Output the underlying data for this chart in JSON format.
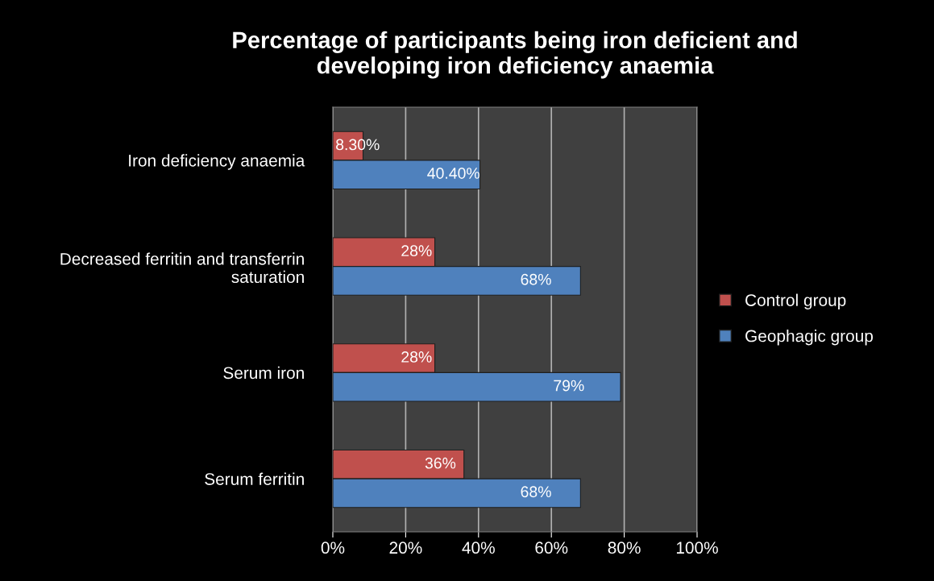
{
  "chart_data": {
    "type": "bar",
    "orientation": "horizontal",
    "title": "Percentage of participants being iron deficient and\ndeveloping iron deficiency anaemia",
    "categories": [
      "Iron deficiency anaemia",
      "Decreased ferritin and transferrin\nsaturation",
      "Serum iron",
      "Serum ferritin"
    ],
    "series": [
      {
        "name": "Control group",
        "color": "#c0504d",
        "values": [
          8.3,
          28,
          28,
          36
        ],
        "value_labels": [
          "8.30%",
          "28%",
          "28%",
          "36%"
        ]
      },
      {
        "name": "Geophagic group",
        "color": "#4f81bd",
        "values": [
          40.4,
          68,
          79,
          68
        ],
        "value_labels": [
          "40.40%",
          "68%",
          "79%",
          "68%"
        ]
      }
    ],
    "xlim": [
      0,
      100
    ],
    "xticks": [
      {
        "value": 0,
        "label": "0%"
      },
      {
        "value": 20,
        "label": "20%"
      },
      {
        "value": 40,
        "label": "40%"
      },
      {
        "value": 60,
        "label": "60%"
      },
      {
        "value": 80,
        "label": "80%"
      },
      {
        "value": 100,
        "label": "100%"
      }
    ],
    "grid": "x",
    "legend": "right"
  }
}
